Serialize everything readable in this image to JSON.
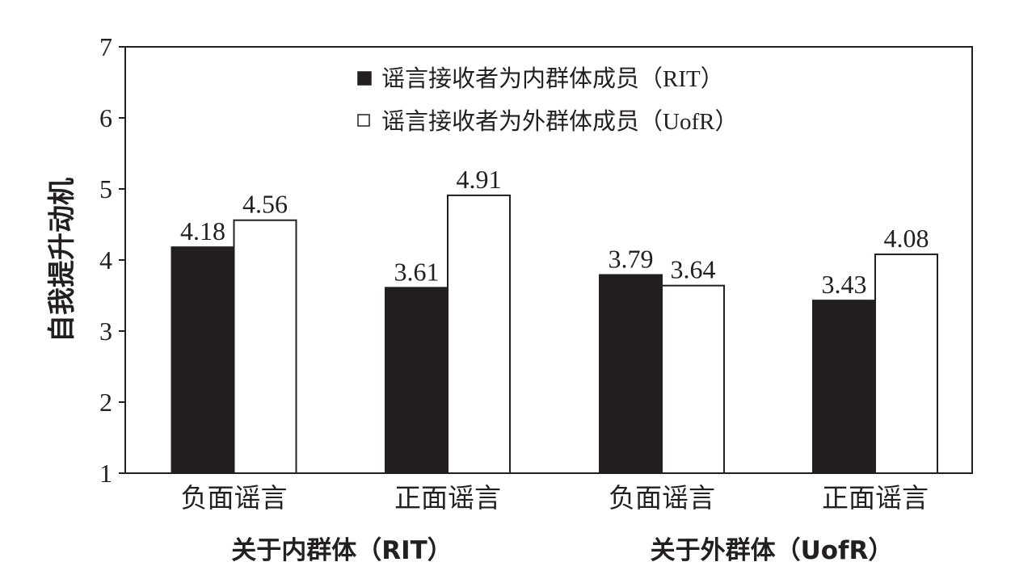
{
  "chart_data": {
    "type": "bar",
    "title": "",
    "ylabel": "自我提升动机",
    "ylim": [
      1,
      7
    ],
    "yticks": [
      1,
      2,
      3,
      4,
      5,
      6,
      7
    ],
    "grid": false,
    "legend_position": "top-right",
    "groups": [
      {
        "label": "关于内群体（RIT）",
        "categories": [
          "负面谣言",
          "正面谣言"
        ]
      },
      {
        "label": "关于外群体（UofR）",
        "categories": [
          "负面谣言",
          "正面谣言"
        ]
      }
    ],
    "categories": [
      "负面谣言",
      "正面谣言",
      "负面谣言",
      "正面谣言"
    ],
    "series": [
      {
        "name": "谣言接收者为内群体成员（RIT）",
        "legend_marker": "■",
        "fill": "#231f20",
        "values": [
          4.18,
          3.61,
          3.79,
          3.43
        ],
        "labels": [
          "4.18",
          "3.61",
          "3.79",
          "3.43"
        ]
      },
      {
        "name": "谣言接收者为外群体成员（UofR）",
        "legend_marker": "□",
        "fill": "#ffffff",
        "values": [
          4.56,
          4.91,
          3.64,
          4.08
        ],
        "labels": [
          "4.56",
          "4.91",
          "3.64",
          "4.08"
        ]
      }
    ]
  }
}
